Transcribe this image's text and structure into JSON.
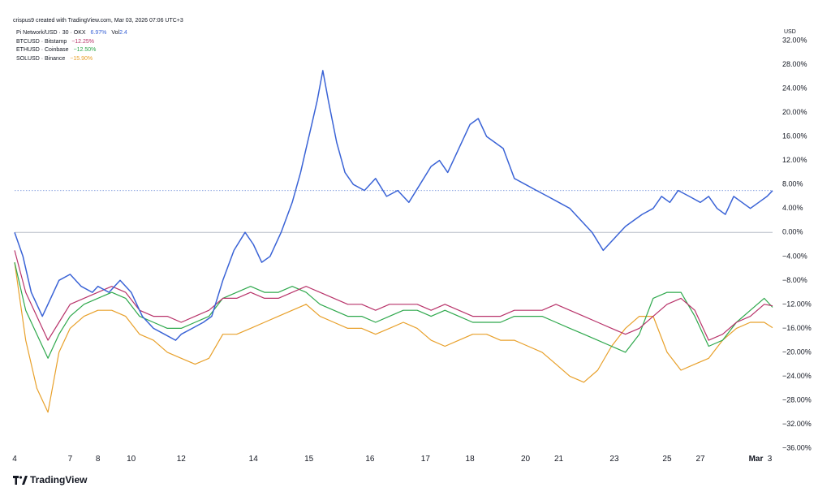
{
  "header": "crispus9 created with TradingView.com, Mar 03, 2026 07:06 UTC+3",
  "legend": {
    "main": {
      "symbol": "Pi Network/USD · 30 · OKX",
      "value": "6.97%",
      "vol_label": "Vol",
      "vol_value": "2.4"
    },
    "compare": [
      {
        "symbol": "BTCUSD · Bitstamp",
        "value": "−12.25%"
      },
      {
        "symbol": "ETHUSD · Coinbase",
        "value": "−12.50%"
      },
      {
        "symbol": "SOLUSD · Binance",
        "value": "−15.90%"
      }
    ]
  },
  "axis_unit": "USD",
  "logo": "TradingView",
  "colors": {
    "pi": "#3a63d6",
    "btc": "#b8336a",
    "eth": "#2ea84c",
    "sol": "#e8a02a",
    "zero": "#b7bec8",
    "current": "#5b7fd4"
  },
  "chart_data": {
    "type": "line",
    "ylabel": "USD",
    "ylim": [
      -36,
      32
    ],
    "yticks": [
      "32.00%",
      "28.00%",
      "24.00%",
      "20.00%",
      "16.00%",
      "12.00%",
      "8.00%",
      "4.00%",
      "0.00%",
      "-4.00%",
      "-8.00%",
      "-12.00%",
      "-16.00%",
      "-20.00%",
      "-24.00%",
      "-28.00%",
      "-32.00%",
      "-36.00%"
    ],
    "xlim": [
      4,
      31.3
    ],
    "xticks": [
      {
        "label": "4",
        "x": 4
      },
      {
        "label": "7",
        "x": 6
      },
      {
        "label": "8",
        "x": 7
      },
      {
        "label": "10",
        "x": 8.2
      },
      {
        "label": "12",
        "x": 10
      },
      {
        "label": "14",
        "x": 12.6
      },
      {
        "label": "15",
        "x": 14.6
      },
      {
        "label": "16",
        "x": 16.8
      },
      {
        "label": "17",
        "x": 18.8
      },
      {
        "label": "18",
        "x": 20.4
      },
      {
        "label": "20",
        "x": 22.4
      },
      {
        "label": "21",
        "x": 23.6
      },
      {
        "label": "23",
        "x": 25.6
      },
      {
        "label": "25",
        "x": 27.5
      },
      {
        "label": "27",
        "x": 28.7
      },
      {
        "label": "Mar",
        "x": 30.7
      },
      {
        "label": "3",
        "x": 31.2
      }
    ],
    "current_value": 6.97,
    "series": [
      {
        "name": "Pi Network/USD · 30 · OKX",
        "x": [
          4,
          4.3,
          4.6,
          5,
          5.3,
          5.6,
          6,
          6.4,
          6.8,
          7,
          7.4,
          7.8,
          8.2,
          8.6,
          9,
          9.4,
          9.8,
          10,
          10.4,
          10.8,
          11.1,
          11.5,
          11.9,
          12.3,
          12.6,
          12.9,
          13.2,
          13.6,
          14,
          14.3,
          14.5,
          14.7,
          14.9,
          15.1,
          15.3,
          15.6,
          15.9,
          16.2,
          16.6,
          17,
          17.4,
          17.8,
          18.2,
          18.6,
          19,
          19.3,
          19.6,
          20,
          20.4,
          20.7,
          21,
          21.3,
          21.6,
          22,
          22.4,
          22.8,
          23.2,
          23.6,
          24,
          24.4,
          24.8,
          25.2,
          25.6,
          25.8,
          26,
          26.3,
          26.6,
          27,
          27.3,
          27.6,
          27.9,
          28.3,
          28.7,
          29,
          29.3,
          29.6,
          29.9,
          30.2,
          30.5,
          30.8,
          31.1,
          31.3
        ],
        "values": [
          0,
          -4,
          -10,
          -14,
          -11,
          -8,
          -7,
          -9,
          -10,
          -9,
          -10,
          -8,
          -10,
          -14,
          -16,
          -17,
          -18,
          -17,
          -16,
          -15,
          -14,
          -8,
          -3,
          0,
          -2,
          -5,
          -4,
          0,
          5,
          10,
          14,
          18,
          22,
          27,
          22,
          15,
          10,
          8,
          7,
          9,
          6,
          7,
          5,
          8,
          11,
          12,
          10,
          14,
          18,
          19,
          16,
          15,
          14,
          9,
          8,
          7,
          6,
          5,
          4,
          2,
          0,
          -3,
          -1,
          0,
          1,
          2,
          3,
          4,
          6,
          5,
          7,
          6,
          5,
          6,
          4,
          3,
          6,
          5,
          4,
          5,
          6,
          6.97
        ]
      },
      {
        "name": "BTCUSD · Bitstamp",
        "x": [
          4,
          4.4,
          4.8,
          5.2,
          5.6,
          6,
          6.5,
          7,
          7.5,
          8,
          8.5,
          9,
          9.5,
          10,
          10.5,
          11,
          11.5,
          12,
          12.5,
          13,
          13.5,
          14,
          14.5,
          15,
          15.5,
          16,
          16.5,
          17,
          17.5,
          18,
          18.5,
          19,
          19.5,
          20,
          20.5,
          21,
          21.5,
          22,
          22.5,
          23,
          23.5,
          24,
          24.5,
          25,
          25.5,
          26,
          26.5,
          27,
          27.5,
          28,
          28.5,
          29,
          29.5,
          30,
          30.5,
          31,
          31.3
        ],
        "values": [
          -3,
          -10,
          -14,
          -18,
          -15,
          -12,
          -11,
          -10,
          -9,
          -10,
          -13,
          -14,
          -14,
          -15,
          -14,
          -13,
          -11,
          -11,
          -10,
          -11,
          -11,
          -10,
          -9,
          -10,
          -11,
          -12,
          -12,
          -13,
          -12,
          -12,
          -12,
          -13,
          -12,
          -13,
          -14,
          -14,
          -14,
          -13,
          -13,
          -13,
          -12,
          -13,
          -14,
          -15,
          -16,
          -17,
          -16,
          -14,
          -12,
          -11,
          -13,
          -18,
          -17,
          -15,
          -14,
          -12,
          -12.25
        ]
      },
      {
        "name": "ETHUSD · Coinbase",
        "x": [
          4,
          4.4,
          4.8,
          5.2,
          5.6,
          6,
          6.5,
          7,
          7.5,
          8,
          8.5,
          9,
          9.5,
          10,
          10.5,
          11,
          11.5,
          12,
          12.5,
          13,
          13.5,
          14,
          14.5,
          15,
          15.5,
          16,
          16.5,
          17,
          17.5,
          18,
          18.5,
          19,
          19.5,
          20,
          20.5,
          21,
          21.5,
          22,
          22.5,
          23,
          23.5,
          24,
          24.5,
          25,
          25.5,
          26,
          26.5,
          27,
          27.5,
          28,
          28.5,
          29,
          29.5,
          30,
          30.5,
          31,
          31.3
        ],
        "values": [
          -5,
          -13,
          -17,
          -21,
          -17,
          -14,
          -12,
          -11,
          -10,
          -11,
          -14,
          -15,
          -16,
          -16,
          -15,
          -14,
          -11,
          -10,
          -9,
          -10,
          -10,
          -9,
          -10,
          -12,
          -13,
          -14,
          -14,
          -15,
          -14,
          -13,
          -13,
          -14,
          -13,
          -14,
          -15,
          -15,
          -15,
          -14,
          -14,
          -14,
          -15,
          -16,
          -17,
          -18,
          -19,
          -20,
          -17,
          -11,
          -10,
          -10,
          -14,
          -19,
          -18,
          -15,
          -13,
          -11,
          -12.5
        ]
      },
      {
        "name": "SOLUSD · Binance",
        "x": [
          4,
          4.4,
          4.8,
          5.2,
          5.6,
          6,
          6.5,
          7,
          7.5,
          8,
          8.5,
          9,
          9.5,
          10,
          10.5,
          11,
          11.5,
          12,
          12.5,
          13,
          13.5,
          14,
          14.5,
          15,
          15.5,
          16,
          16.5,
          17,
          17.5,
          18,
          18.5,
          19,
          19.5,
          20,
          20.5,
          21,
          21.5,
          22,
          22.5,
          23,
          23.5,
          24,
          24.5,
          25,
          25.5,
          26,
          26.5,
          27,
          27.5,
          28,
          28.5,
          29,
          29.5,
          30,
          30.5,
          31,
          31.3
        ],
        "values": [
          -5,
          -18,
          -26,
          -30,
          -20,
          -16,
          -14,
          -13,
          -13,
          -14,
          -17,
          -18,
          -20,
          -21,
          -22,
          -21,
          -17,
          -17,
          -16,
          -15,
          -14,
          -13,
          -12,
          -14,
          -15,
          -16,
          -16,
          -17,
          -16,
          -15,
          -16,
          -18,
          -19,
          -18,
          -17,
          -17,
          -18,
          -18,
          -19,
          -20,
          -22,
          -24,
          -25,
          -23,
          -19,
          -16,
          -14,
          -14,
          -20,
          -23,
          -22,
          -21,
          -18,
          -16,
          -15,
          -15,
          -15.9
        ]
      }
    ]
  }
}
